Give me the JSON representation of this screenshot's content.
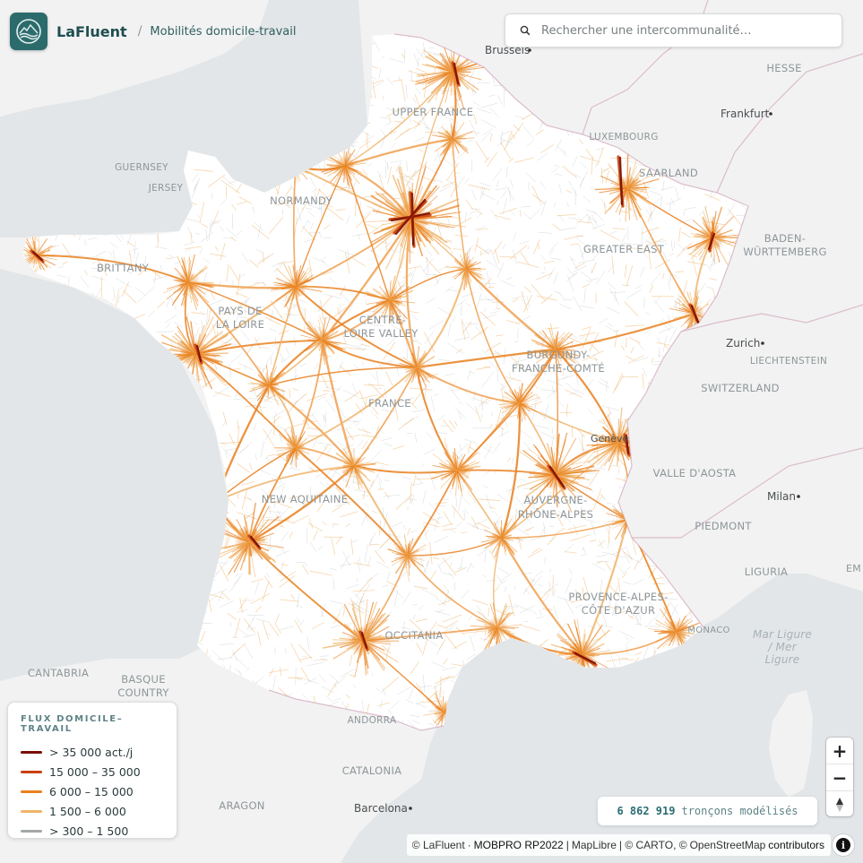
{
  "app": {
    "name": "LaFluent",
    "breadcrumb_separator": "/",
    "page_title": "Mobilités domicile-travail",
    "logo_icon": "wave-mountain-icon"
  },
  "search": {
    "placeholder": "Rechercher une intercommunalité…",
    "value": "",
    "icon": "search-icon"
  },
  "legend": {
    "title": "FLUX DOMICILE–TRAVAIL",
    "items": [
      {
        "label": "> 35 000 act./j",
        "color": "#7a0f05"
      },
      {
        "label": "15 000 – 35 000",
        "color": "#c8400b"
      },
      {
        "label": "6 000 – 15 000",
        "color": "#e9801f"
      },
      {
        "label": "1 500 – 6 000",
        "color": "#f0b46a"
      },
      {
        "label": "> 300 – 1 500",
        "color": "#a4a8aa"
      }
    ]
  },
  "stats": {
    "segments_count": "6 862 919",
    "segments_label": "tronçons modélisés"
  },
  "zoom": {
    "in": "+",
    "out": "−"
  },
  "attribution": {
    "lafluent": "© LaFluent",
    "dot": "·",
    "mobpro": "MOBPRO RP2022",
    "pipe": "|",
    "maplibre": "MapLibre",
    "carto": "| © CARTO, ©",
    "osm": "OpenStreetMap",
    "contributors": "contributors"
  },
  "map": {
    "colors": {
      "sea": "#e3e6e8",
      "land_outside": "#f2f2f2",
      "france": "#ffffff",
      "border": "#d9b8c9",
      "label": "#8e9699",
      "city_label": "#4a4f52"
    },
    "region_labels": [
      "UPPER FRANCE",
      "NORMANDY",
      "BRITTANY",
      "PAYS DE LA LOIRE",
      "CENTRE-LOIRE VALLEY",
      "GREATER EAST",
      "BURGUNDY-FRANCHE-COMTÉ",
      "FRANCE",
      "NEW AQUITAINE",
      "AUVERGNE-RHÔNE-ALPES",
      "OCCITANIA",
      "PROVENCE-ALPES-CÔTE D'AZUR"
    ],
    "country_labels": [
      "GUERNSEY",
      "JERSEY",
      "LUXEMBOURG",
      "SAARLAND",
      "HESSE",
      "BADEN-WÜRTTEMBERG",
      "LIECHTENSTEIN",
      "SWITZERLAND",
      "VALLE D'AOSTA",
      "PIEDMONT",
      "LIGURIA",
      "MONACO",
      "CANTABRIA",
      "BASQUE COUNTRY",
      "ANDORRA",
      "CATALONIA",
      "ARAGON",
      "EM"
    ],
    "city_labels": [
      "Brussels",
      "Frankfurt",
      "Zurich",
      "Milan",
      "Barcelona",
      "Genève"
    ],
    "sea_label": "Mar Ligure / Mer Ligure"
  }
}
